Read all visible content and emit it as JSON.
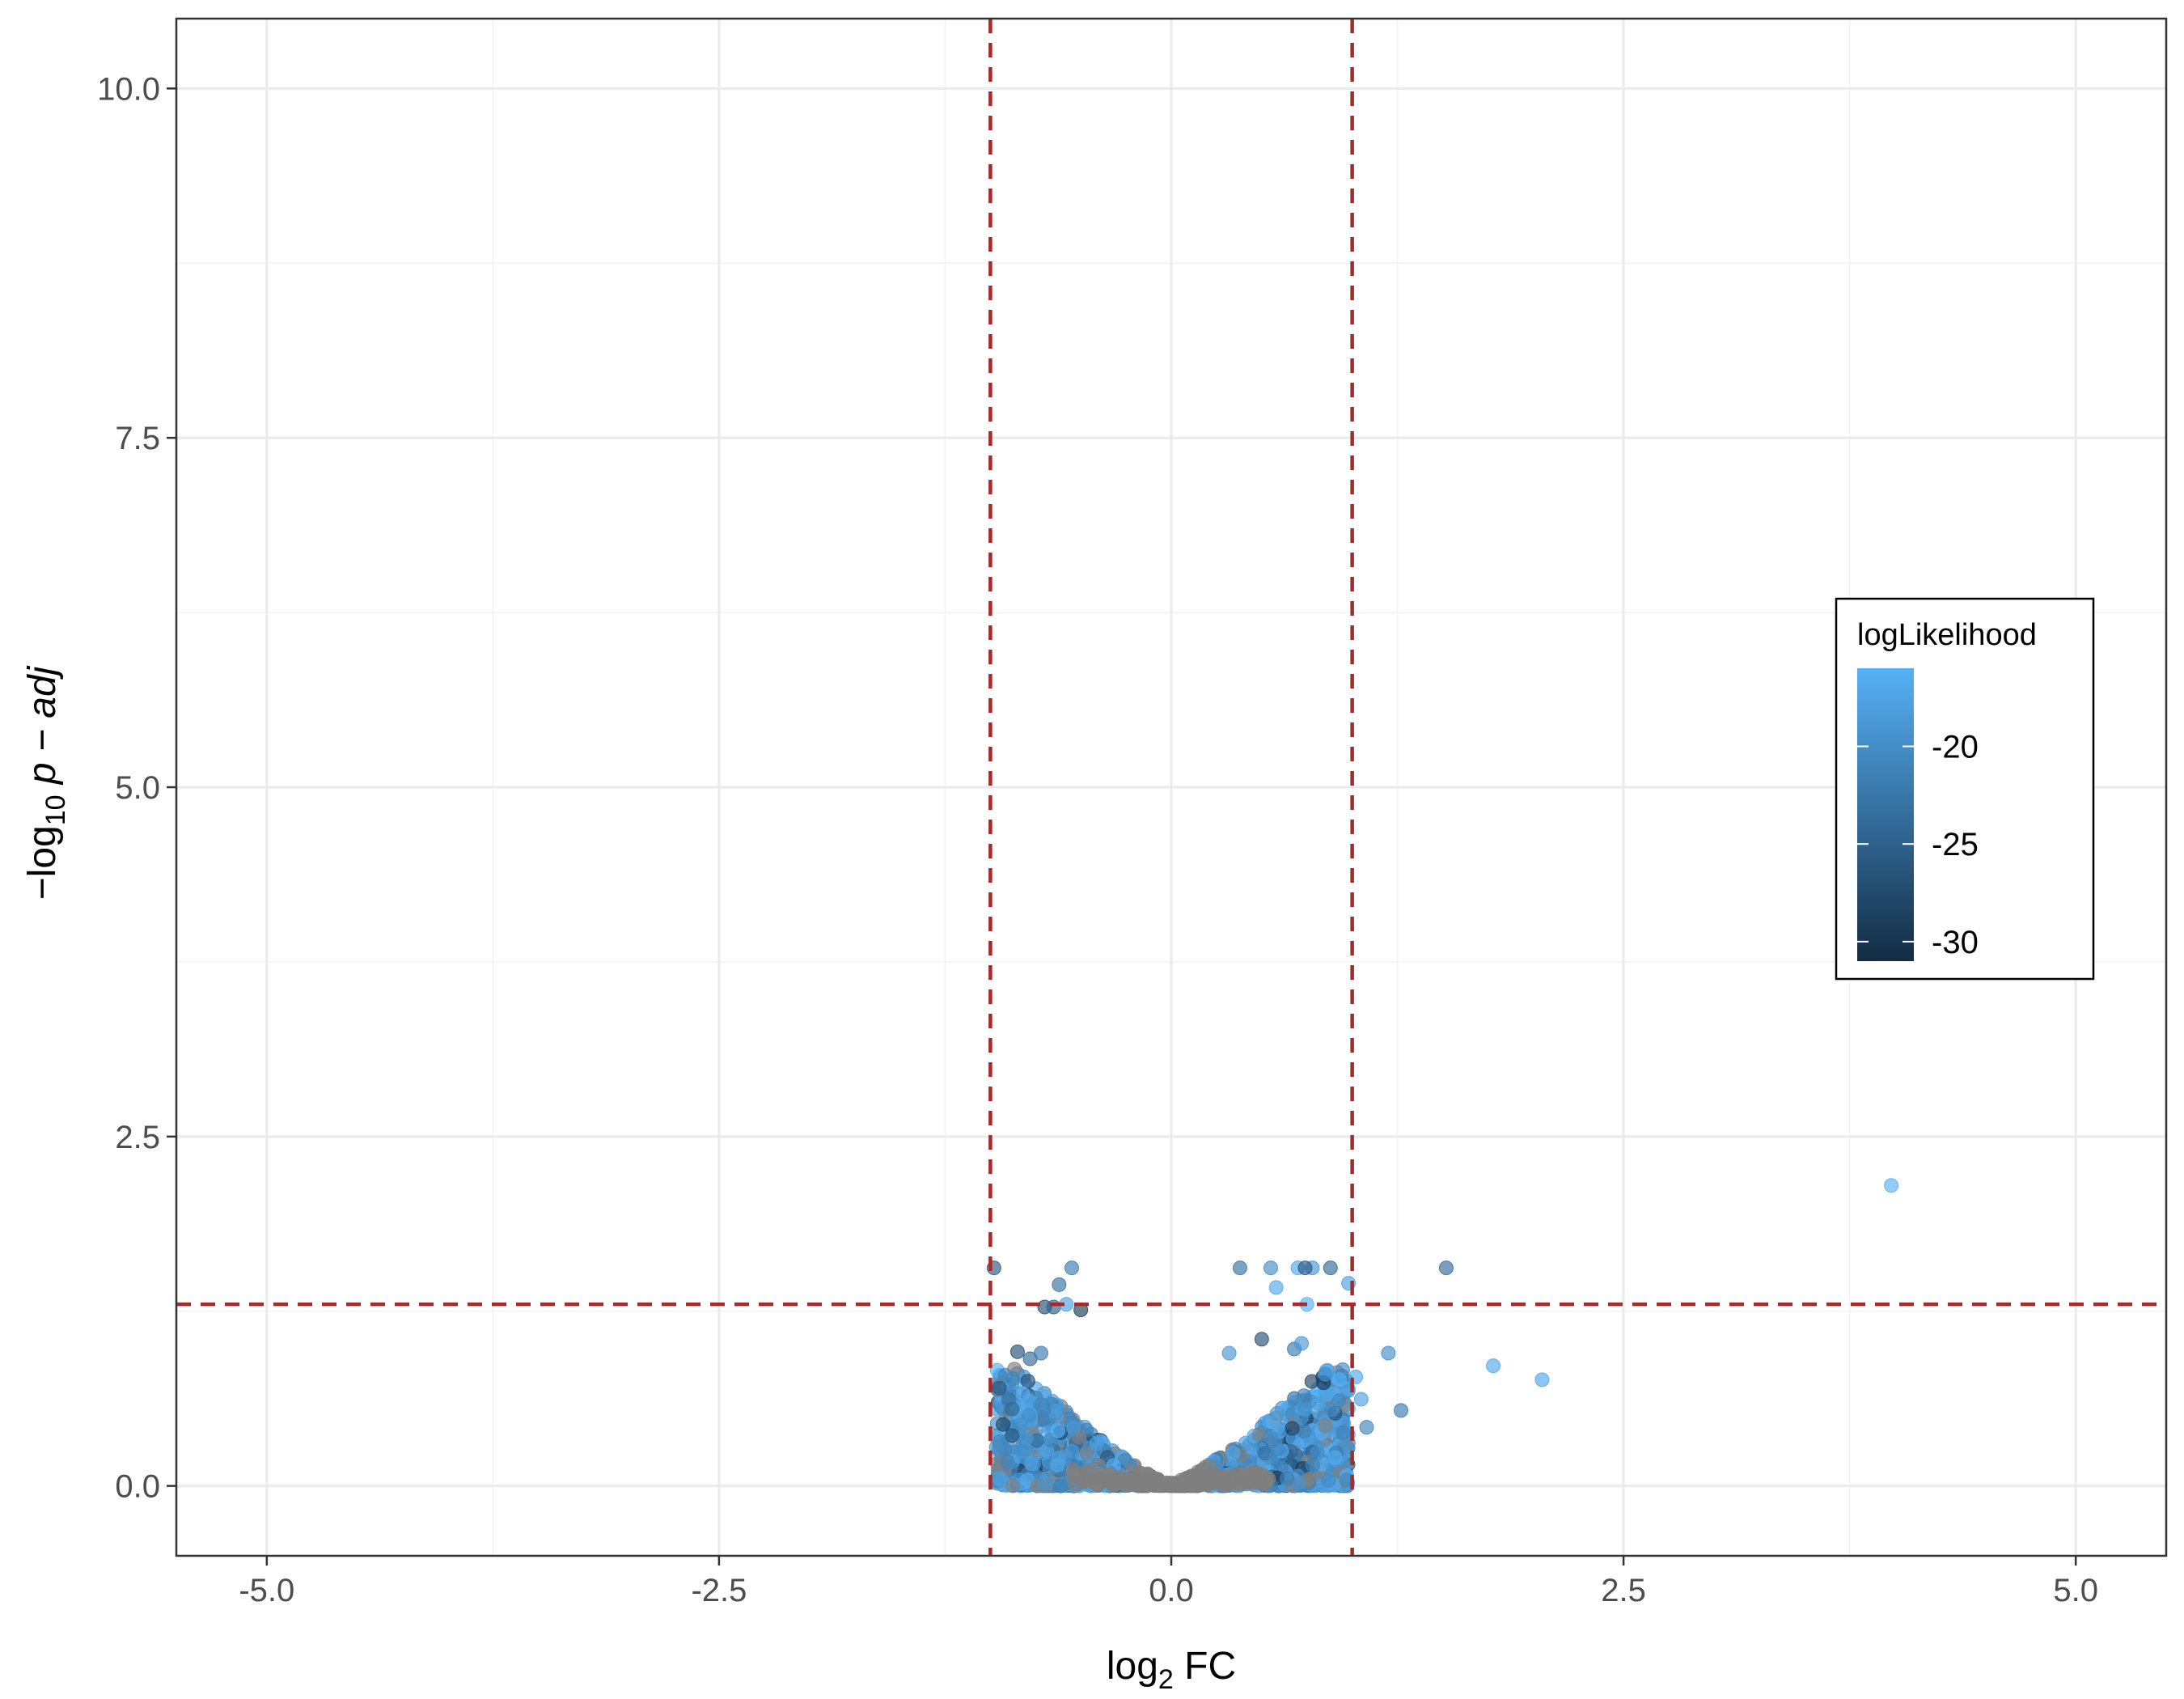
{
  "chart_data": {
    "type": "scatter",
    "xlabel_base": "log",
    "xlabel_sub": "2",
    "xlabel_rest": " FC",
    "ylabel_prefix": "−log",
    "ylabel_sub": "10",
    "ylabel_rest": " p − adj",
    "xlim": [
      -5.5,
      5.5
    ],
    "ylim": [
      -0.5,
      10.5
    ],
    "x_ticks": [
      -5.0,
      -2.5,
      0.0,
      2.5,
      5.0
    ],
    "x_tick_labels": [
      "-5.0",
      "-2.5",
      "0.0",
      "2.5",
      "5.0"
    ],
    "y_ticks": [
      0.0,
      2.5,
      5.0,
      7.5,
      10.0
    ],
    "y_tick_labels": [
      "0.0",
      "2.5",
      "5.0",
      "7.5",
      "10.0"
    ],
    "grid": true,
    "thresholds": {
      "vlines": [
        -1,
        1
      ],
      "hline": 1.3,
      "color": "#a52a2a",
      "style": "dashed"
    },
    "legend": {
      "title": "logLikelihood",
      "placement": "right",
      "type": "colorbar",
      "min": -31,
      "max": -16,
      "breaks": [
        -20,
        -25,
        -30
      ],
      "break_labels": [
        "-20",
        "-25",
        "-30"
      ],
      "low_color": "#132b43",
      "high_color": "#56b1f7"
    },
    "na_color": "#7f7f7f",
    "highlight_points": [
      {
        "x": 3.98,
        "y": 2.15,
        "ll": -16
      },
      {
        "x": 1.78,
        "y": 0.86,
        "ll": -17
      },
      {
        "x": 2.05,
        "y": 0.76,
        "ll": -17
      },
      {
        "x": 1.52,
        "y": 1.56,
        "ll": -24
      },
      {
        "x": 1.27,
        "y": 0.54,
        "ll": -22
      },
      {
        "x": 1.2,
        "y": 0.95,
        "ll": -20
      },
      {
        "x": 1.05,
        "y": 0.62,
        "ll": -18
      },
      {
        "x": 1.02,
        "y": 0.78,
        "ll": -17
      },
      {
        "x": 1.08,
        "y": 0.42,
        "ll": -21
      },
      {
        "x": -0.98,
        "y": 1.56,
        "ll": -26
      },
      {
        "x": -0.55,
        "y": 1.56,
        "ll": -22
      },
      {
        "x": -0.62,
        "y": 1.44,
        "ll": -23
      },
      {
        "x": -0.7,
        "y": 1.28,
        "ll": -27
      },
      {
        "x": -0.65,
        "y": 1.28,
        "ll": -25
      },
      {
        "x": -0.58,
        "y": 1.3,
        "ll": -18
      },
      {
        "x": -0.5,
        "y": 1.26,
        "ll": -29
      },
      {
        "x": 0.38,
        "y": 1.56,
        "ll": -23
      },
      {
        "x": 0.55,
        "y": 1.56,
        "ll": -20
      },
      {
        "x": 0.7,
        "y": 1.56,
        "ll": -17
      },
      {
        "x": 0.78,
        "y": 1.56,
        "ll": -19
      },
      {
        "x": 0.88,
        "y": 1.56,
        "ll": -24
      },
      {
        "x": 0.74,
        "y": 1.56,
        "ll": -26
      },
      {
        "x": 0.98,
        "y": 1.45,
        "ll": -18
      },
      {
        "x": 0.75,
        "y": 1.3,
        "ll": -16
      },
      {
        "x": 0.58,
        "y": 1.42,
        "ll": -17
      },
      {
        "x": 0.5,
        "y": 1.05,
        "ll": -27
      },
      {
        "x": 0.68,
        "y": 0.98,
        "ll": -22
      },
      {
        "x": 0.72,
        "y": 1.02,
        "ll": -19
      },
      {
        "x": 0.32,
        "y": 0.95,
        "ll": -19
      },
      {
        "x": 0.93,
        "y": 0.76,
        "ll": -16
      },
      {
        "x": 0.85,
        "y": 0.8,
        "ll": -20
      },
      {
        "x": 0.95,
        "y": 0.38,
        "ll": -21
      },
      {
        "x": -0.85,
        "y": 0.96,
        "ll": -27
      },
      {
        "x": -0.78,
        "y": 0.91,
        "ll": -24
      },
      {
        "x": -0.72,
        "y": 0.95,
        "ll": -22
      },
      {
        "x": -0.95,
        "y": 0.7,
        "ll": -26
      },
      {
        "x": -0.9,
        "y": 0.62,
        "ll": -23
      },
      {
        "x": -0.93,
        "y": 0.44,
        "ll": -28
      },
      {
        "x": -0.88,
        "y": 0.55,
        "ll": -24
      },
      {
        "x": -0.82,
        "y": 0.66,
        "ll": -17
      },
      {
        "x": -0.88,
        "y": 0.36,
        "ll": -26
      }
    ]
  }
}
